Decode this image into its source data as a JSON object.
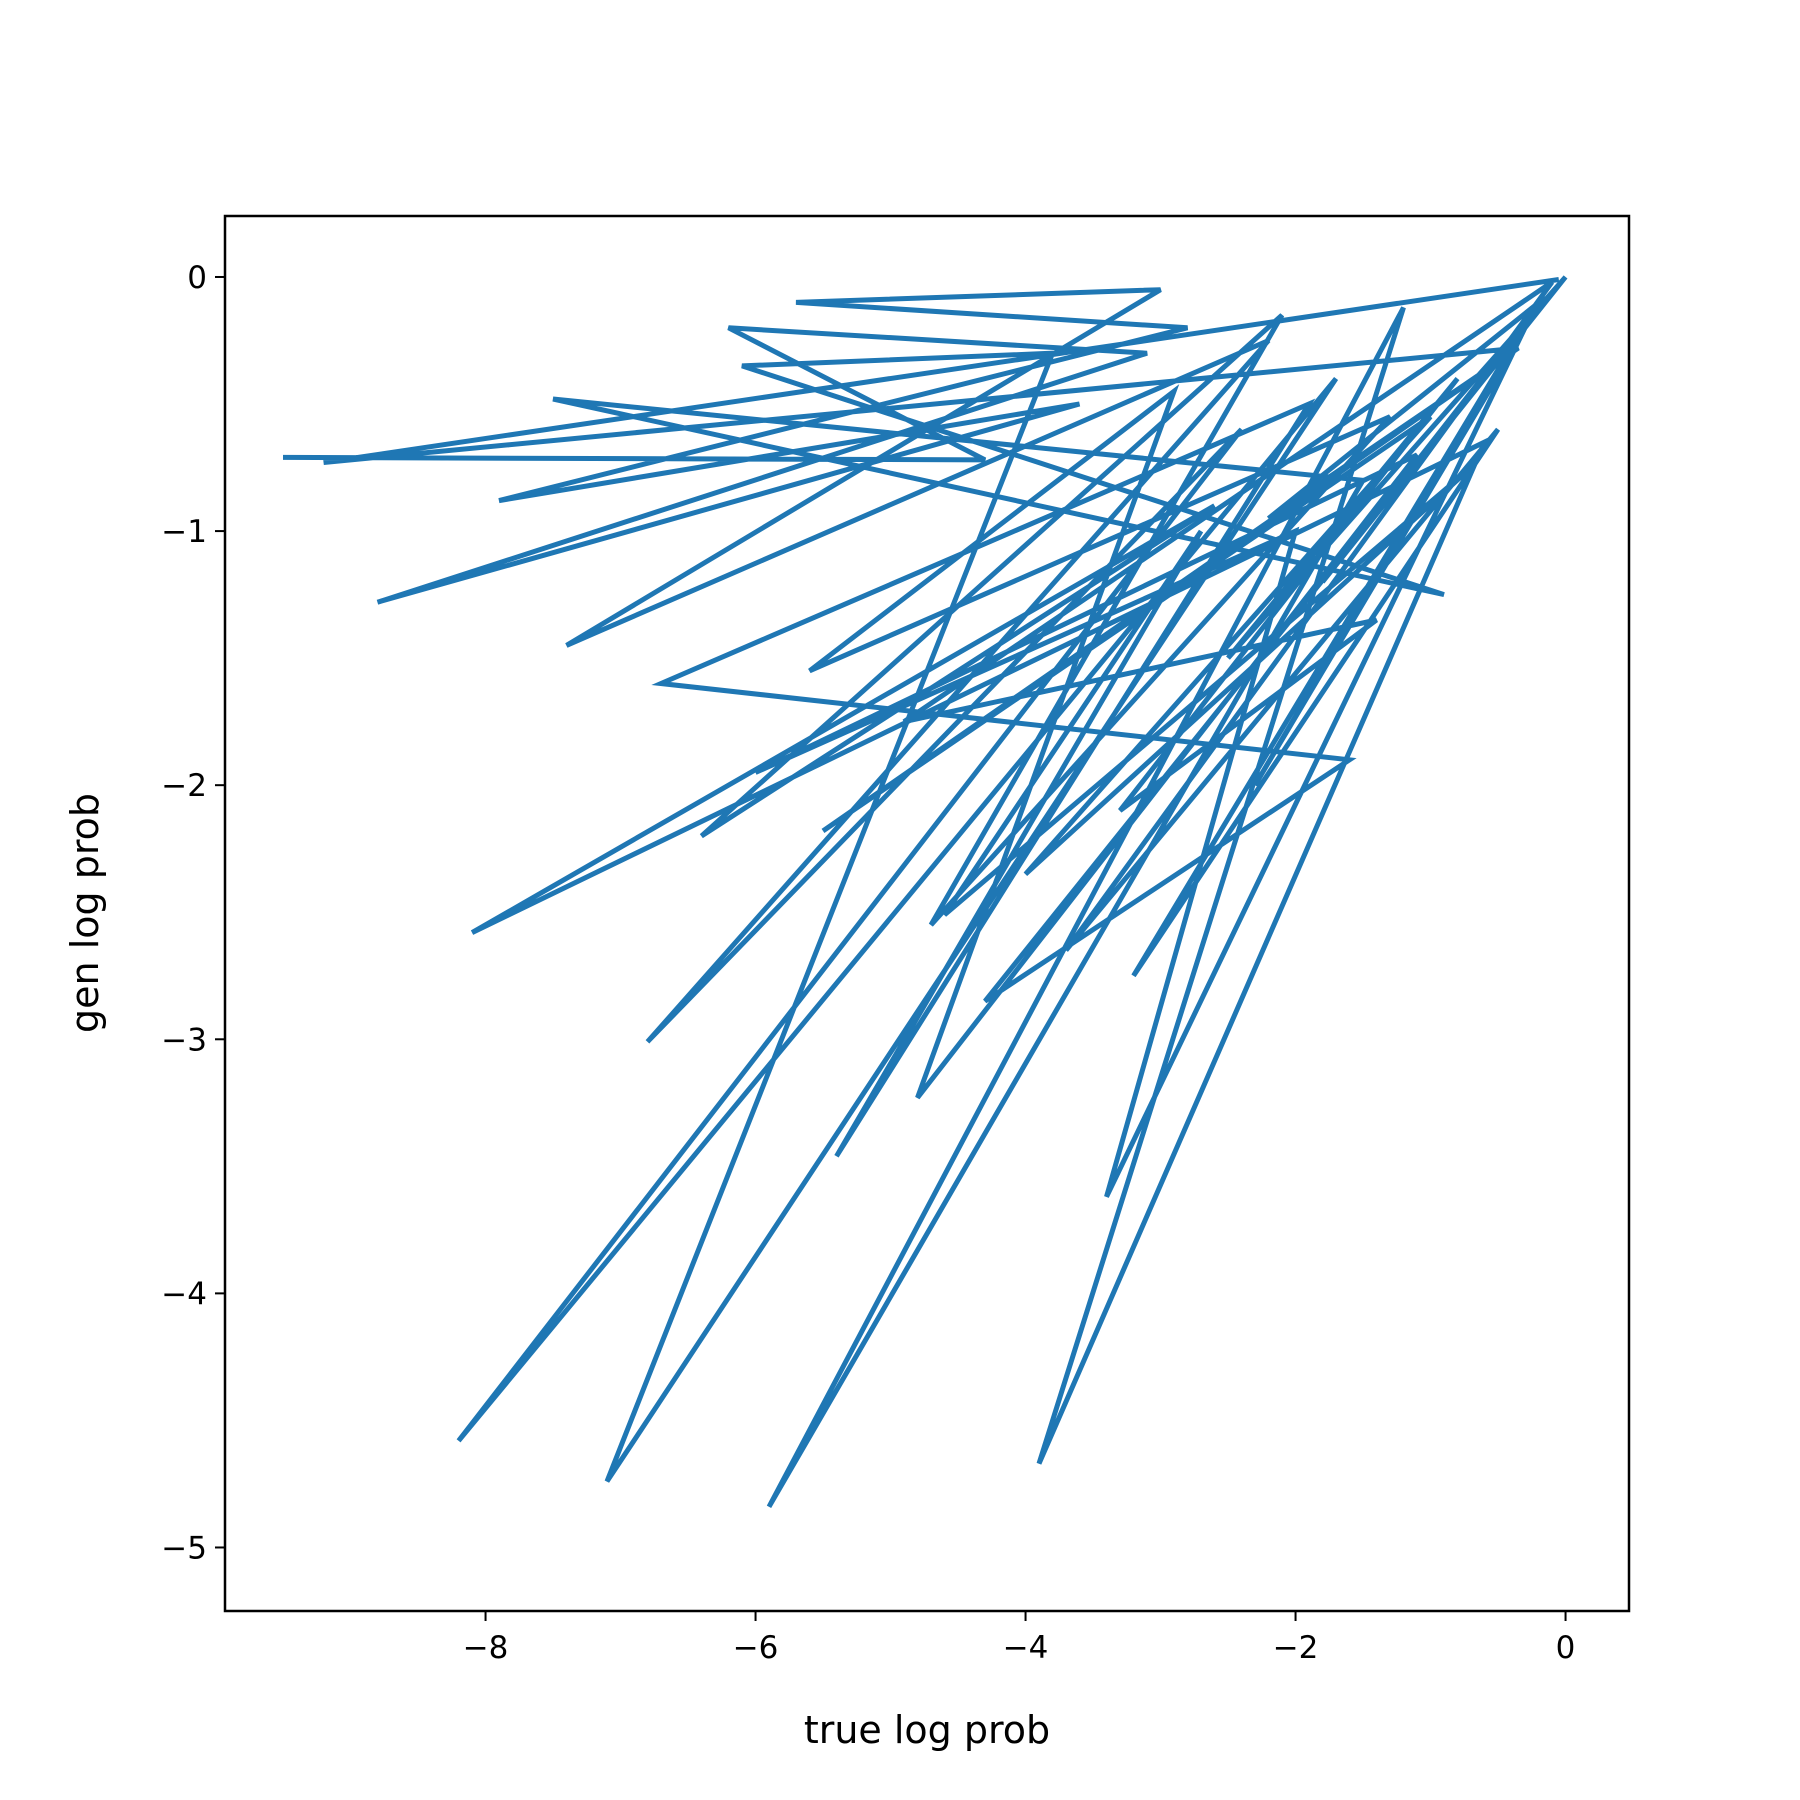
{
  "chart_data": {
    "type": "line",
    "title": "",
    "xlabel": "true log prob",
    "ylabel": "gen log prob",
    "xlim": [
      -9.93,
      0.47
    ],
    "ylim": [
      -5.25,
      0.24
    ],
    "xticks": [
      -8,
      -6,
      -4,
      -2,
      0
    ],
    "xtick_labels": [
      "−8",
      "−6",
      "−4",
      "−2",
      "0"
    ],
    "yticks": [
      0,
      -1,
      -2,
      -3,
      -4,
      -5
    ],
    "ytick_labels": [
      "0",
      "−1",
      "−2",
      "−3",
      "−4",
      "−5"
    ],
    "grid": false,
    "series": [
      {
        "color": "#1f77b4",
        "x": [
          -9.5,
          -4.3,
          -6.2,
          -3.1,
          -8.8,
          -3.6,
          -7.9,
          -2.8,
          -5.7,
          -3.0,
          -7.4,
          -2.2,
          -6.8,
          -2.4,
          -8.2,
          -1.7,
          -7.1,
          -3.8,
          -6.1,
          -0.9,
          -7.5,
          -1.5,
          -5.9,
          -1.2,
          -3.9,
          -0.6,
          -8.1,
          -2.6,
          -6.4,
          -2.1,
          -4.7,
          -1.3,
          -5.6,
          -2.9,
          -4.8,
          -1.1,
          -6.0,
          -2.0,
          -3.4,
          -0.3,
          -4.3,
          -1.6,
          -6.7,
          -1.9,
          -5.4,
          -2.7,
          -4.6,
          -0.7,
          -4.0,
          -1.0,
          -5.5,
          -0.4,
          -2.3,
          -0.2,
          -3.2,
          -0.5,
          -3.7,
          -0.1,
          -4.9,
          -1.4,
          -3.3,
          -0.8,
          -2.5,
          0.0,
          -1.8,
          -0.15,
          -2.2,
          -0.35,
          -9.2,
          -0.05
        ],
        "y": [
          -0.71,
          -0.72,
          -0.2,
          -0.3,
          -1.28,
          -0.5,
          -0.88,
          -0.2,
          -0.1,
          -0.05,
          -1.45,
          -0.25,
          -3.01,
          -0.6,
          -4.58,
          -0.4,
          -4.74,
          -0.3,
          -0.35,
          -1.25,
          -0.48,
          -0.8,
          -4.84,
          -0.12,
          -4.67,
          -0.65,
          -2.58,
          -0.9,
          -2.2,
          -0.15,
          -2.55,
          -0.55,
          -1.55,
          -0.45,
          -3.23,
          -0.7,
          -1.95,
          -1.0,
          -3.62,
          -0.2,
          -2.85,
          -1.9,
          -1.6,
          -0.5,
          -3.46,
          -1.0,
          -2.51,
          -0.75,
          -2.35,
          -0.55,
          -2.18,
          -0.3,
          -2.0,
          -0.1,
          -2.75,
          -0.6,
          -2.65,
          -0.02,
          -1.75,
          -1.35,
          -2.1,
          -0.4,
          -1.5,
          0.0,
          -1.2,
          -0.08,
          -0.95,
          -0.28,
          -0.73,
          -0.01
        ]
      }
    ]
  }
}
